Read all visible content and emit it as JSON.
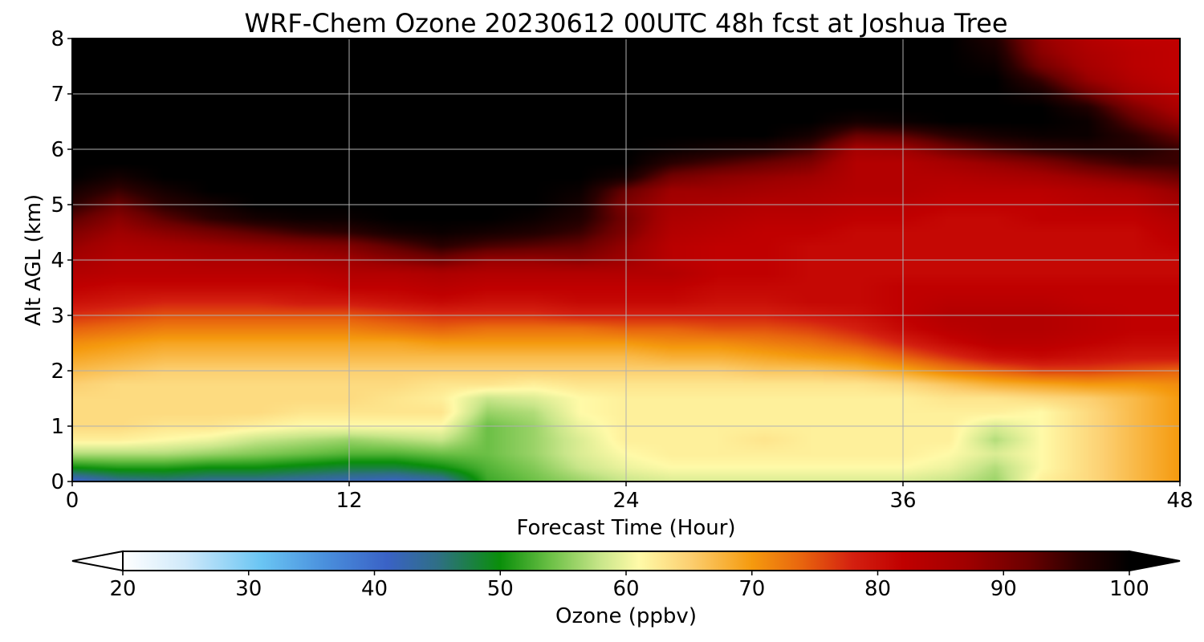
{
  "chart_data": {
    "type": "heatmap",
    "title": "WRF-Chem Ozone  20230612 00UTC 48h fcst at Joshua Tree",
    "xlabel": "Forecast Time (Hour)",
    "ylabel": "Alt AGL (km)",
    "xlim": [
      0,
      48
    ],
    "ylim": [
      0,
      8
    ],
    "xticks": [
      0,
      12,
      24,
      36,
      48
    ],
    "yticks": [
      0,
      1,
      2,
      3,
      4,
      5,
      6,
      7,
      8
    ],
    "grid": true,
    "colorbar": {
      "label": "Ozone  (ppbv)",
      "orientation": "horizontal",
      "extend": "both",
      "range": [
        20,
        100
      ],
      "ticks": [
        20,
        30,
        40,
        50,
        60,
        70,
        80,
        90,
        100
      ],
      "stops": [
        {
          "v": 20,
          "c": "#ffffff"
        },
        {
          "v": 25,
          "c": "#cfe9fa"
        },
        {
          "v": 31,
          "c": "#6ac5f3"
        },
        {
          "v": 36,
          "c": "#4a90dd"
        },
        {
          "v": 41,
          "c": "#3a62c6"
        },
        {
          "v": 45,
          "c": "#2f6f86"
        },
        {
          "v": 50,
          "c": "#0a8f0a"
        },
        {
          "v": 54,
          "c": "#6cc046"
        },
        {
          "v": 58,
          "c": "#c9e68a"
        },
        {
          "v": 61,
          "c": "#fffaa8"
        },
        {
          "v": 65,
          "c": "#fcd072"
        },
        {
          "v": 70,
          "c": "#f59a0e"
        },
        {
          "v": 74,
          "c": "#e8640e"
        },
        {
          "v": 78,
          "c": "#d42010"
        },
        {
          "v": 82,
          "c": "#c00000"
        },
        {
          "v": 87,
          "c": "#a00000"
        },
        {
          "v": 92,
          "c": "#6a0000"
        },
        {
          "v": 96,
          "c": "#2a0000"
        },
        {
          "v": 100,
          "c": "#000000"
        }
      ]
    },
    "hours": [
      0,
      2,
      4,
      6,
      8,
      10,
      12,
      14,
      16,
      18,
      20,
      22,
      24,
      26,
      28,
      30,
      32,
      34,
      36,
      38,
      40,
      42,
      44,
      46,
      48
    ],
    "altitudes_km": [
      0,
      0.25,
      0.5,
      0.75,
      1,
      1.25,
      1.5,
      1.75,
      2,
      2.25,
      2.5,
      2.75,
      3,
      3.25,
      3.5,
      3.75,
      4,
      4.25,
      4.5,
      4.75,
      5,
      5.25,
      5.5,
      5.75,
      6,
      6.25,
      6.5,
      6.75,
      7,
      7.25,
      7.5,
      7.75,
      8
    ],
    "ozone_ppbv": [
      [
        40,
        44,
        45,
        44,
        44,
        43,
        42,
        41,
        43,
        52,
        54,
        56,
        58,
        59,
        59,
        59,
        59,
        59,
        59,
        58,
        56,
        62,
        64,
        67,
        70
      ],
      [
        50,
        51,
        51,
        50,
        50,
        49,
        48,
        48,
        50,
        53,
        55,
        58,
        60,
        61,
        61,
        61,
        61,
        61,
        61,
        60,
        57,
        61,
        64,
        67,
        70
      ],
      [
        57,
        57,
        57,
        56,
        55,
        54,
        53,
        53,
        54,
        54,
        56,
        59,
        61,
        62,
        62,
        62,
        62,
        62,
        62,
        61,
        59,
        61,
        64,
        67,
        70
      ],
      [
        62,
        62,
        61,
        60,
        58,
        57,
        56,
        57,
        58,
        54,
        56,
        59,
        62,
        62,
        62,
        63,
        62,
        62,
        62,
        62,
        57,
        61,
        64,
        67,
        70
      ],
      [
        64,
        64,
        63,
        63,
        62,
        61,
        61,
        61,
        61,
        54,
        56,
        60,
        62,
        62,
        62,
        62,
        62,
        62,
        62,
        62,
        59,
        61,
        64,
        67,
        70
      ],
      [
        64,
        64,
        64,
        64,
        64,
        63,
        63,
        63,
        63,
        56,
        57,
        61,
        62,
        62,
        62,
        62,
        62,
        62,
        62,
        62,
        62,
        61,
        64,
        67,
        70
      ],
      [
        64,
        64,
        64,
        64,
        64,
        64,
        64,
        63,
        62,
        58,
        59,
        61,
        62,
        62,
        62,
        62,
        62,
        62,
        62,
        63,
        63,
        64,
        65,
        67,
        70
      ],
      [
        65,
        64,
        64,
        64,
        64,
        64,
        64,
        64,
        63,
        63,
        62,
        63,
        63,
        63,
        63,
        63,
        63,
        63,
        64,
        66,
        68,
        69,
        70,
        70,
        71
      ],
      [
        67,
        66,
        65,
        65,
        65,
        65,
        65,
        65,
        65,
        65,
        65,
        65,
        65,
        65,
        65,
        66,
        66,
        67,
        69,
        72,
        74,
        76,
        76,
        75,
        74
      ],
      [
        69,
        68,
        67,
        67,
        67,
        67,
        67,
        67,
        67,
        67,
        67,
        67,
        67,
        68,
        68,
        69,
        70,
        71,
        74,
        77,
        80,
        81,
        80,
        79,
        79
      ],
      [
        71,
        70,
        69,
        69,
        69,
        69,
        69,
        69,
        70,
        70,
        70,
        70,
        70,
        71,
        71,
        72,
        73,
        75,
        78,
        81,
        83,
        83,
        82,
        81,
        81
      ],
      [
        74,
        73,
        72,
        72,
        72,
        72,
        72,
        73,
        74,
        73,
        73,
        73,
        74,
        74,
        75,
        75,
        76,
        78,
        81,
        83,
        84,
        84,
        83,
        82,
        82
      ],
      [
        77,
        76,
        75,
        75,
        75,
        75,
        75,
        76,
        77,
        77,
        77,
        78,
        78,
        78,
        78,
        78,
        79,
        80,
        82,
        84,
        84,
        84,
        83,
        82,
        82
      ],
      [
        80,
        79,
        78,
        78,
        78,
        79,
        79,
        80,
        81,
        80,
        80,
        81,
        81,
        81,
        80,
        80,
        81,
        81,
        82,
        83,
        83,
        83,
        82,
        82,
        82
      ],
      [
        82,
        81,
        81,
        81,
        81,
        81,
        82,
        82,
        83,
        82,
        82,
        82,
        82,
        82,
        81,
        81,
        81,
        81,
        82,
        82,
        82,
        82,
        82,
        82,
        82
      ],
      [
        84,
        83,
        83,
        83,
        83,
        83,
        84,
        84,
        85,
        84,
        84,
        84,
        84,
        84,
        82,
        82,
        81,
        81,
        81,
        81,
        81,
        81,
        81,
        81,
        81
      ],
      [
        86,
        84,
        84,
        85,
        85,
        86,
        87,
        89,
        91,
        88,
        88,
        89,
        87,
        83,
        82,
        82,
        81,
        81,
        81,
        81,
        81,
        81,
        81,
        81,
        81
      ],
      [
        88,
        85,
        86,
        87,
        88,
        89,
        90,
        93,
        96,
        94,
        93,
        92,
        88,
        83,
        82,
        82,
        81,
        81,
        81,
        81,
        81,
        81,
        81,
        81,
        82
      ],
      [
        90,
        87,
        89,
        91,
        93,
        95,
        96,
        98,
        99,
        98,
        97,
        95,
        90,
        84,
        83,
        82,
        82,
        81,
        81,
        81,
        81,
        81,
        81,
        81,
        83
      ],
      [
        93,
        89,
        93,
        96,
        98,
        99,
        99,
        100,
        100,
        100,
        99,
        97,
        91,
        85,
        84,
        83,
        83,
        82,
        82,
        81,
        81,
        82,
        82,
        82,
        84
      ],
      [
        96,
        92,
        96,
        98,
        100,
        100,
        100,
        100,
        100,
        100,
        100,
        98,
        90,
        86,
        85,
        84,
        84,
        83,
        83,
        82,
        82,
        82,
        83,
        83,
        86
      ],
      [
        98,
        95,
        98,
        100,
        100,
        100,
        100,
        100,
        100,
        100,
        100,
        99,
        92,
        87,
        87,
        86,
        85,
        84,
        84,
        83,
        83,
        83,
        84,
        85,
        88
      ],
      [
        100,
        98,
        100,
        100,
        100,
        100,
        100,
        100,
        100,
        100,
        100,
        100,
        98,
        91,
        89,
        88,
        87,
        84,
        84,
        84,
        85,
        86,
        88,
        90,
        92
      ],
      [
        100,
        100,
        100,
        100,
        100,
        100,
        100,
        100,
        100,
        100,
        100,
        100,
        100,
        96,
        94,
        92,
        90,
        84,
        84,
        86,
        88,
        90,
        93,
        95,
        95
      ],
      [
        100,
        100,
        100,
        100,
        100,
        100,
        100,
        100,
        100,
        100,
        100,
        100,
        100,
        99,
        98,
        97,
        94,
        86,
        87,
        91,
        94,
        96,
        97,
        97,
        95
      ],
      [
        100,
        100,
        100,
        100,
        100,
        100,
        100,
        100,
        100,
        100,
        100,
        100,
        100,
        100,
        100,
        100,
        98,
        92,
        93,
        96,
        98,
        99,
        99,
        96,
        92
      ],
      [
        100,
        100,
        100,
        100,
        100,
        100,
        100,
        100,
        100,
        100,
        100,
        100,
        100,
        100,
        100,
        100,
        100,
        98,
        99,
        100,
        100,
        100,
        99,
        93,
        88
      ],
      [
        100,
        100,
        100,
        100,
        100,
        100,
        100,
        100,
        100,
        100,
        100,
        100,
        100,
        100,
        100,
        100,
        100,
        100,
        100,
        100,
        100,
        100,
        97,
        90,
        85
      ],
      [
        100,
        100,
        100,
        100,
        100,
        100,
        100,
        100,
        100,
        100,
        100,
        100,
        100,
        100,
        100,
        100,
        100,
        100,
        100,
        100,
        100,
        98,
        92,
        86,
        83
      ],
      [
        100,
        100,
        100,
        100,
        100,
        100,
        100,
        100,
        100,
        100,
        100,
        100,
        100,
        100,
        100,
        100,
        100,
        100,
        100,
        100,
        100,
        95,
        88,
        84,
        82
      ],
      [
        100,
        100,
        100,
        100,
        100,
        100,
        100,
        100,
        100,
        100,
        100,
        100,
        100,
        100,
        100,
        100,
        100,
        100,
        100,
        100,
        99,
        91,
        86,
        83,
        82
      ],
      [
        100,
        100,
        100,
        100,
        100,
        100,
        100,
        100,
        100,
        100,
        100,
        100,
        100,
        100,
        100,
        100,
        100,
        100,
        100,
        100,
        98,
        89,
        85,
        83,
        82
      ],
      [
        100,
        100,
        100,
        100,
        100,
        100,
        100,
        100,
        100,
        100,
        100,
        100,
        100,
        100,
        100,
        100,
        100,
        100,
        100,
        100,
        97,
        88,
        84,
        82,
        82
      ]
    ]
  }
}
